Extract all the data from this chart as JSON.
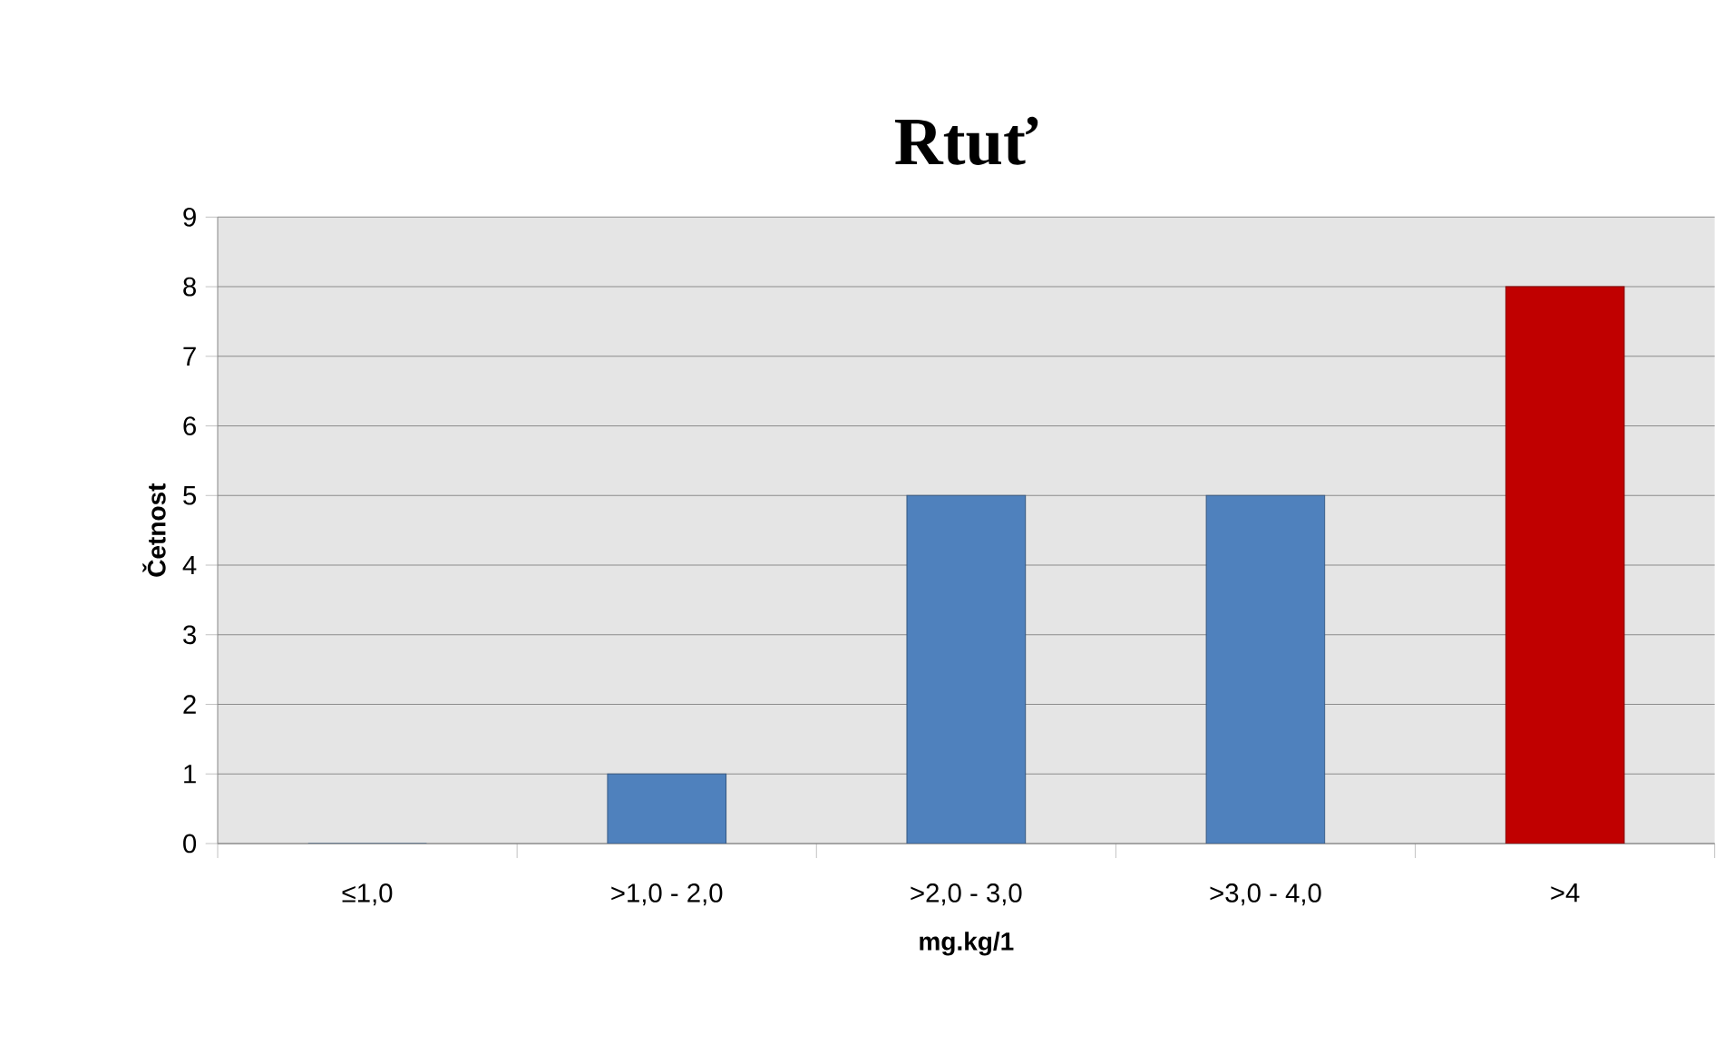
{
  "chart_data": {
    "type": "bar",
    "title": "Rtuť",
    "xlabel": "mg.kg/1",
    "ylabel": "Četnost",
    "categories": [
      "≤1,0",
      ">1,0 - 2,0",
      ">2,0 - 3,0",
      ">3,0 - 4,0",
      ">4"
    ],
    "values": [
      0,
      1,
      5,
      5,
      8
    ],
    "colors": [
      "#4f81bd",
      "#4f81bd",
      "#4f81bd",
      "#4f81bd",
      "#c00000"
    ],
    "ylim": [
      0,
      9
    ],
    "yticks": [
      0,
      1,
      2,
      3,
      4,
      5,
      6,
      7,
      8,
      9
    ],
    "grid": "y"
  }
}
